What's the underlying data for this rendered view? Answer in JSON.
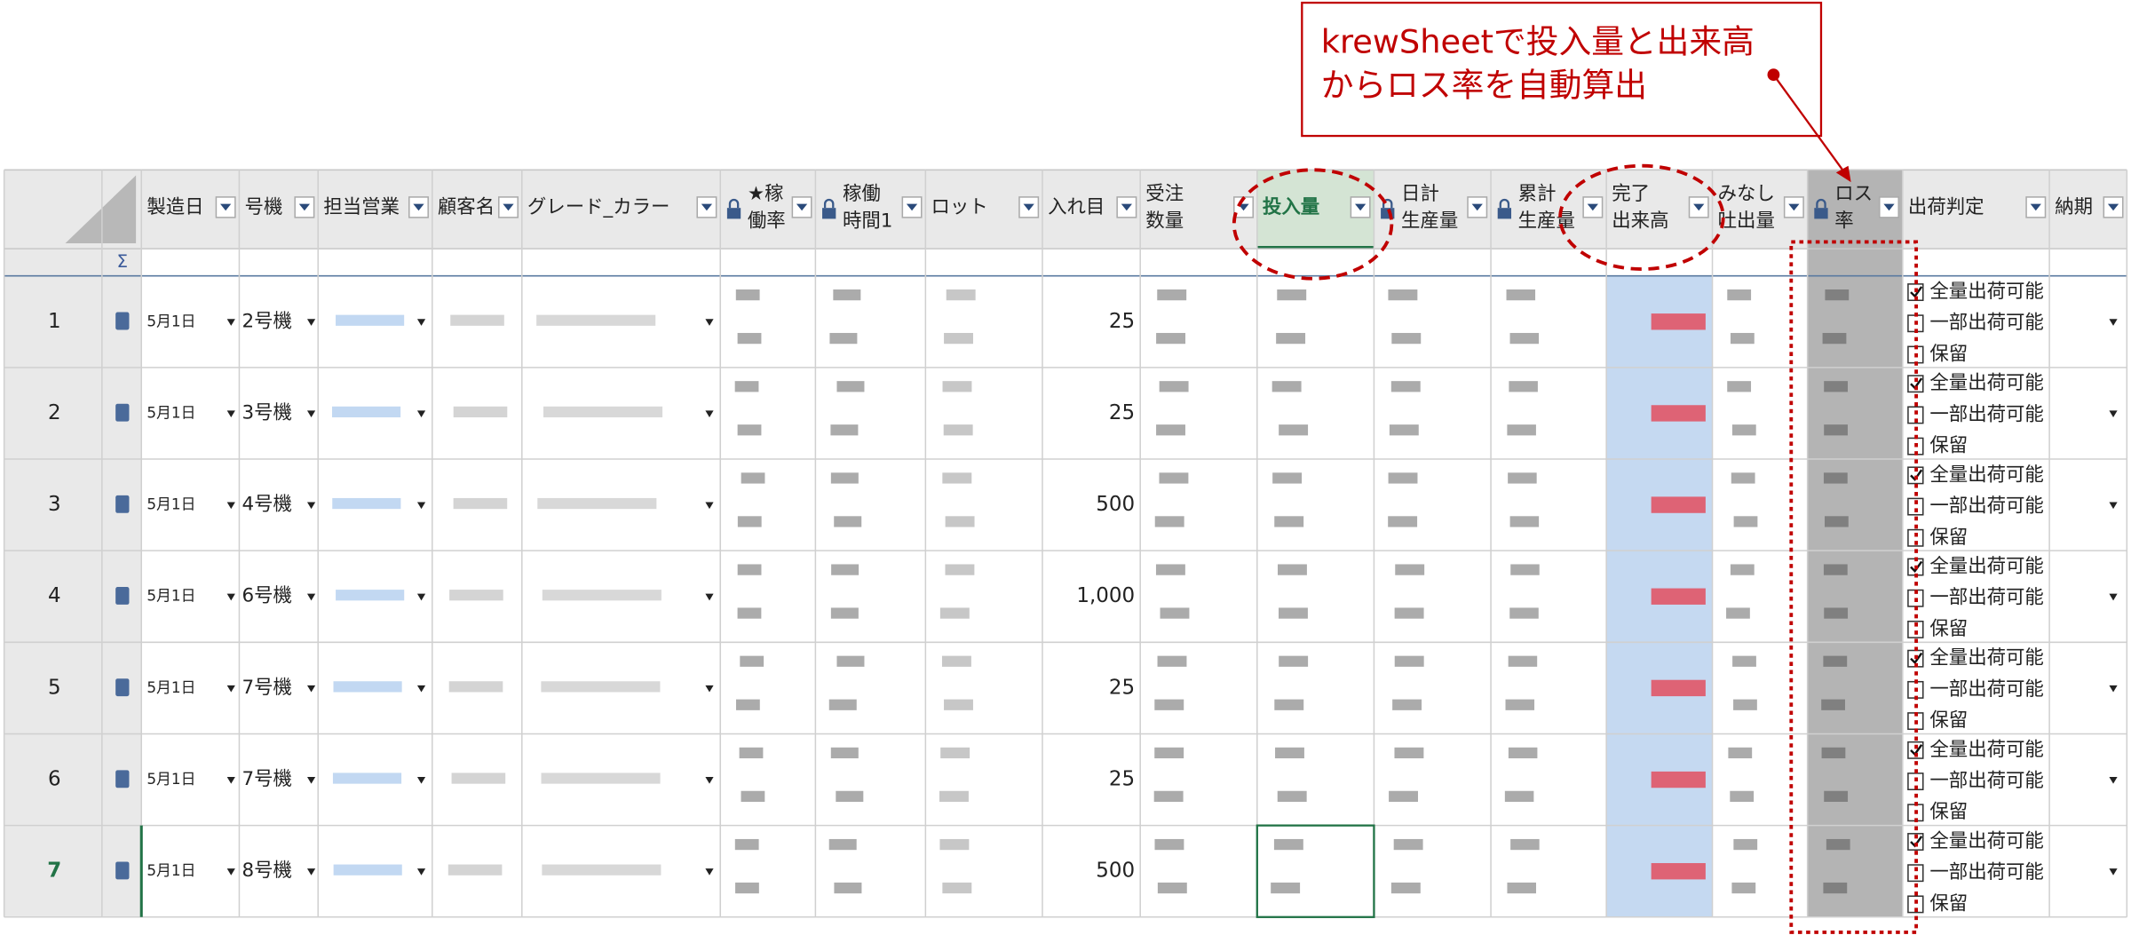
{
  "callout": {
    "lines": [
      "krewSheetで投入量と出来高",
      "からロス率を自動算出"
    ]
  },
  "table": {
    "sigma": "Σ",
    "headers": [
      [
        "製造日"
      ],
      [
        "号機"
      ],
      [
        "担当営業"
      ],
      [
        "顧客名"
      ],
      [
        "グレード_カラー"
      ],
      [
        "★稼",
        "働率"
      ],
      [
        "稼働",
        "時間1"
      ],
      [
        "ロット"
      ],
      [
        "入れ目"
      ],
      [
        "受注",
        "数量"
      ],
      [
        "投入量"
      ],
      [
        "日計",
        "生産量"
      ],
      [
        "累計",
        "生産量"
      ],
      [
        "完了",
        "出来高"
      ],
      [
        "みなし",
        "吐出量"
      ],
      [
        "ロス",
        "率"
      ],
      [
        "出荷判定"
      ],
      [
        "納期"
      ]
    ],
    "rows": [
      {
        "num": "1",
        "date": "5月1日",
        "machine": "2号機",
        "ire": "25",
        "options": [
          "全量出荷可能",
          "一部出荷可能",
          "保留"
        ]
      },
      {
        "num": "2",
        "date": "5月1日",
        "machine": "3号機",
        "ire": "25",
        "options": [
          "全量出荷可能",
          "一部出荷可能",
          "保留"
        ]
      },
      {
        "num": "3",
        "date": "5月1日",
        "machine": "4号機",
        "ire": "500",
        "options": [
          "全量出荷可能",
          "一部出荷可能",
          "保留"
        ]
      },
      {
        "num": "4",
        "date": "5月1日",
        "machine": "6号機",
        "ire": "1,000",
        "options": [
          "全量出荷可能",
          "一部出荷可能",
          "保留"
        ]
      },
      {
        "num": "5",
        "date": "5月1日",
        "machine": "7号機",
        "ire": "25",
        "options": [
          "全量出荷可能",
          "一部出荷可能",
          "保留"
        ]
      },
      {
        "num": "6",
        "date": "5月1日",
        "machine": "7号機",
        "ire": "25",
        "options": [
          "全量出荷可能",
          "一部出荷可能",
          "保留"
        ]
      },
      {
        "num": "7",
        "date": "5月1日",
        "machine": "8号機",
        "ire": "500",
        "options": [
          "全量出荷可能",
          "一部出荷可能",
          "保留"
        ]
      }
    ]
  }
}
